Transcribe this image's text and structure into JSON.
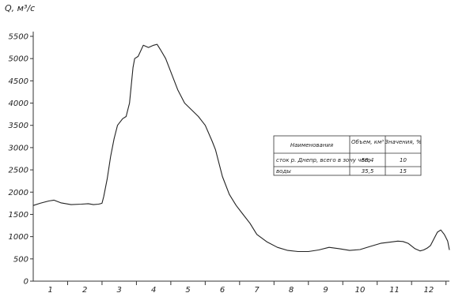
{
  "chart_data": {
    "type": "line",
    "title": "",
    "ylabel": "Q, м³/с",
    "xlabel": "",
    "ylim": [
      0,
      5500
    ],
    "xlim": [
      0.5,
      12.6
    ],
    "grid": false,
    "yticks": [
      0,
      500,
      1000,
      1500,
      2000,
      2500,
      3000,
      3500,
      4000,
      4500,
      5000,
      5500
    ],
    "xticks": [
      "1",
      "2",
      "3",
      "4",
      "5",
      "6",
      "7",
      "8",
      "9",
      "10",
      "11",
      "12"
    ],
    "series": [
      {
        "x": [
          0.5,
          0.7,
          0.95,
          1.1,
          1.3,
          1.6,
          1.9,
          2.1,
          2.25,
          2.4,
          2.5,
          2.55,
          2.65,
          2.75,
          2.85,
          2.95,
          3.1,
          3.2,
          3.3,
          3.4,
          3.45,
          3.55,
          3.7,
          3.85,
          4.0,
          4.1,
          4.2,
          4.35,
          4.5,
          4.7,
          4.9,
          5.1,
          5.3,
          5.5,
          5.7,
          5.8,
          6.0,
          6.2,
          6.4,
          6.6,
          6.8,
          7.0,
          7.3,
          7.6,
          7.9,
          8.2,
          8.5,
          8.8,
          9.1,
          9.4,
          9.7,
          10.0,
          10.3,
          10.6,
          10.9,
          11.1,
          11.25,
          11.4,
          11.6,
          11.75,
          11.85,
          11.95,
          12.05,
          12.15,
          12.25,
          12.35,
          12.45,
          12.55,
          12.6
        ],
        "y": [
          1700,
          1750,
          1800,
          1820,
          1760,
          1720,
          1730,
          1740,
          1720,
          1730,
          1750,
          1900,
          2300,
          2800,
          3200,
          3500,
          3650,
          3700,
          4000,
          4800,
          5000,
          5050,
          5300,
          5250,
          5300,
          5320,
          5200,
          5000,
          4700,
          4300,
          4000,
          3850,
          3700,
          3500,
          3150,
          2950,
          2350,
          1950,
          1700,
          1500,
          1300,
          1050,
          880,
          760,
          690,
          665,
          665,
          700,
          760,
          730,
          690,
          710,
          780,
          850,
          880,
          900,
          890,
          850,
          730,
          680,
          700,
          740,
          800,
          950,
          1100,
          1150,
          1050,
          900,
          700
        ]
      }
    ],
    "table": {
      "header": [
        "Наименования",
        "Объем, км³",
        "Значения, %"
      ],
      "rows": [
        [
          "сток р. Днепр, всего в зону чего",
          "58,4",
          "10"
        ],
        [
          "воды",
          "35,5",
          "15"
        ]
      ]
    }
  }
}
